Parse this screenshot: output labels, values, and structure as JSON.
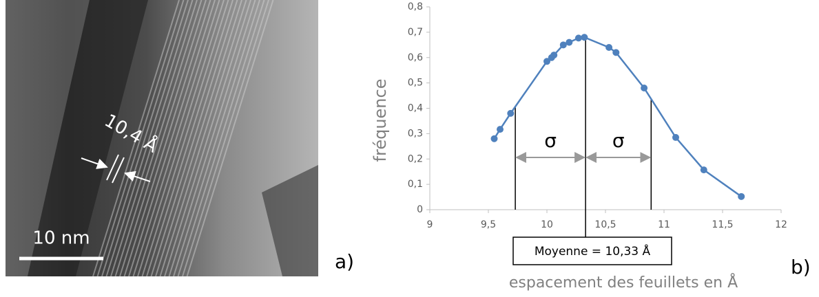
{
  "image": {
    "scale_bar": "10 nm",
    "spacing": "10,4 Å",
    "panel": "a)"
  },
  "chart_data": {
    "type": "line",
    "panel": "b)",
    "x_label": "espacement des feuillets en Å",
    "y_label": "fréquence",
    "x": [
      9.55,
      9.6,
      9.69,
      10.0,
      10.04,
      10.06,
      10.14,
      10.19,
      10.27,
      10.32,
      10.53,
      10.59,
      10.83,
      11.1,
      11.34,
      11.66
    ],
    "series": [
      {
        "name": "fréquence",
        "color": "#4f81bd",
        "values": [
          0.28,
          0.317,
          0.38,
          0.585,
          0.6,
          0.61,
          0.65,
          0.66,
          0.677,
          0.68,
          0.64,
          0.62,
          0.48,
          0.285,
          0.157,
          0.052
        ]
      }
    ],
    "xlim": [
      9,
      12
    ],
    "xticks": [
      9,
      {
        "value": 9.5,
        "label": "9,5"
      },
      10,
      {
        "value": 10.5,
        "label": "10,5"
      },
      11,
      {
        "value": 11.5,
        "label": "11,5"
      },
      12
    ],
    "ylim": [
      0,
      0.8
    ],
    "yticks": [
      0,
      {
        "value": 0.1,
        "label": "0,1"
      },
      {
        "value": 0.2,
        "label": "0,2"
      },
      {
        "value": 0.3,
        "label": "0,3"
      },
      {
        "value": 0.4,
        "label": "0,4"
      },
      {
        "value": 0.5,
        "label": "0,5"
      },
      {
        "value": 0.6,
        "label": "0,6"
      },
      {
        "value": 0.7,
        "label": "0,7"
      },
      {
        "value": 0.8,
        "label": "0,8"
      }
    ],
    "mean": {
      "value": 10.33,
      "label": "Moyenne = 10,33 Å"
    },
    "sigma": {
      "lines": [
        9.73,
        10.89
      ],
      "label": "σ"
    }
  }
}
